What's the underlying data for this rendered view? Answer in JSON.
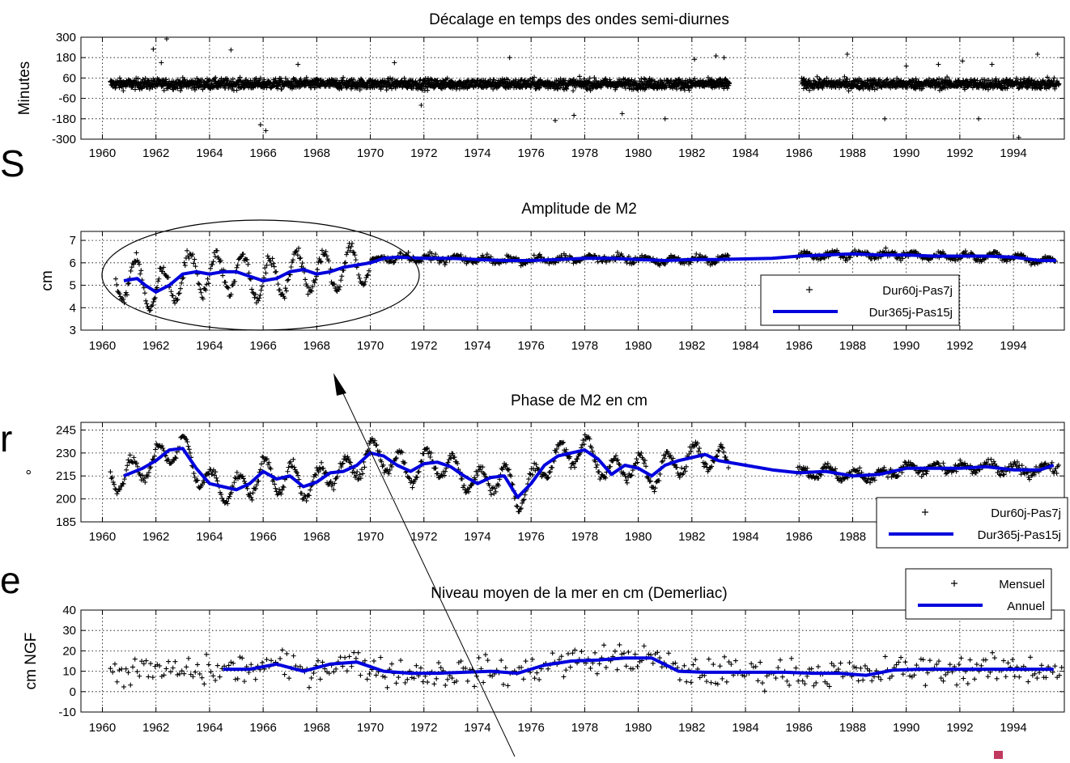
{
  "colors": {
    "series_mark": "#000000",
    "series_line": "#0000dd",
    "corner_mark": "#c0395e"
  },
  "side_glyphs": [
    "S",
    "r",
    "e"
  ],
  "chart_data": [
    {
      "type": "scatter",
      "title": "Décalage en temps des ondes semi-diurnes",
      "xlabel": "",
      "ylabel": "Minutes",
      "xlim": [
        1959.2,
        1995.9
      ],
      "ylim": [
        -300,
        300
      ],
      "x_ticks": [
        "1960",
        "1962",
        "1964",
        "1966",
        "1968",
        "1970",
        "1972",
        "1974",
        "1976",
        "1978",
        "1980",
        "1982",
        "1984",
        "1986",
        "1988",
        "1990",
        "1992",
        "1994"
      ],
      "y_ticks": [
        "300",
        "180",
        "60",
        "-60",
        "-180",
        "-300"
      ],
      "grid": true,
      "series": [
        {
          "kind": "scatter",
          "values_x_range": [
            1960.3,
            1983.4
          ],
          "mean": 25,
          "spread": 30
        },
        {
          "kind": "scatter",
          "values_x_range": [
            1986.1,
            1995.7
          ],
          "mean": 25,
          "spread": 30
        }
      ],
      "outliers": [
        {
          "x": 1961.9,
          "y": 230
        },
        {
          "x": 1962.2,
          "y": 150
        },
        {
          "x": 1962.4,
          "y": 290
        },
        {
          "x": 1964.8,
          "y": 225
        },
        {
          "x": 1965.9,
          "y": -215
        },
        {
          "x": 1966.1,
          "y": -250
        },
        {
          "x": 1967.3,
          "y": 140
        },
        {
          "x": 1970.9,
          "y": 150
        },
        {
          "x": 1971.9,
          "y": -100
        },
        {
          "x": 1975.2,
          "y": 180
        },
        {
          "x": 1976.9,
          "y": -190
        },
        {
          "x": 1977.6,
          "y": -160
        },
        {
          "x": 1979.4,
          "y": -150
        },
        {
          "x": 1981.0,
          "y": -180
        },
        {
          "x": 1982.1,
          "y": 170
        },
        {
          "x": 1982.9,
          "y": 190
        },
        {
          "x": 1983.2,
          "y": 180
        },
        {
          "x": 1987.8,
          "y": 200
        },
        {
          "x": 1989.2,
          "y": -180
        },
        {
          "x": 1990.0,
          "y": 130
        },
        {
          "x": 1991.2,
          "y": 140
        },
        {
          "x": 1992.1,
          "y": 160
        },
        {
          "x": 1992.7,
          "y": -180
        },
        {
          "x": 1993.2,
          "y": 140
        },
        {
          "x": 1994.2,
          "y": -290
        },
        {
          "x": 1994.9,
          "y": 200
        }
      ]
    },
    {
      "type": "line",
      "title": "Amplitude de M2",
      "xlabel": "",
      "ylabel": "cm",
      "xlim": [
        1959.2,
        1995.9
      ],
      "ylim": [
        3,
        7.4
      ],
      "x_ticks": [
        "1960",
        "1962",
        "1964",
        "1966",
        "1968",
        "1970",
        "1972",
        "1974",
        "1976",
        "1978",
        "1980",
        "1982",
        "1984",
        "1986",
        "1988",
        "1990",
        "1992",
        "1994"
      ],
      "y_ticks": [
        "7",
        "6",
        "5",
        "4",
        "3"
      ],
      "grid": true,
      "legend_position": "bottom-right",
      "series": [
        {
          "name": "Dur60j-Pas7j",
          "kind": "scatter",
          "values_x_range": [
            1960.5,
            1995.6
          ]
        },
        {
          "name": "Dur365j-Pas15j",
          "kind": "line",
          "x": [
            1960.8,
            1961.3,
            1961.6,
            1962.0,
            1962.5,
            1963.0,
            1963.5,
            1964.0,
            1964.5,
            1965.0,
            1965.5,
            1966.0,
            1966.5,
            1967.0,
            1967.5,
            1968.0,
            1968.5,
            1969.0,
            1969.5,
            1970.0,
            1970.5,
            1971.0,
            1972.0,
            1973.0,
            1974.0,
            1975.0,
            1976.0,
            1977.0,
            1978.0,
            1979.0,
            1980.0,
            1981.0,
            1982.0,
            1983.0,
            1985.0,
            1986.0,
            1987.0,
            1988.0,
            1989.0,
            1990.0,
            1991.0,
            1992.0,
            1993.0,
            1994.0,
            1995.0,
            1995.6
          ],
          "y": [
            5.2,
            5.3,
            5.0,
            4.7,
            5.0,
            5.5,
            5.6,
            5.5,
            5.6,
            5.6,
            5.4,
            5.2,
            5.3,
            5.6,
            5.7,
            5.5,
            5.6,
            5.8,
            5.9,
            6.0,
            6.2,
            6.25,
            6.2,
            6.2,
            6.15,
            6.1,
            6.1,
            6.15,
            6.2,
            6.2,
            6.15,
            6.1,
            6.15,
            6.15,
            6.2,
            6.3,
            6.35,
            6.4,
            6.35,
            6.35,
            6.3,
            6.3,
            6.3,
            6.25,
            6.1,
            6.1
          ]
        }
      ],
      "annotation": "ellipse"
    },
    {
      "type": "line",
      "title": "Phase de M2 en cm",
      "xlabel": "",
      "ylabel": "°",
      "xlim": [
        1959.2,
        1995.9
      ],
      "ylim": [
        185,
        250
      ],
      "x_ticks": [
        "1960",
        "1962",
        "1964",
        "1966",
        "1968",
        "1970",
        "1972",
        "1974",
        "1976",
        "1978",
        "1980",
        "1982",
        "1984",
        "1986",
        "1988"
      ],
      "y_ticks": [
        "245",
        "230",
        "215",
        "200",
        "185"
      ],
      "grid": true,
      "legend_position": "bottom-right",
      "series": [
        {
          "name": "Dur60j-Pas7j",
          "kind": "scatter",
          "values_x_range": [
            1960.3,
            1995.7
          ]
        },
        {
          "name": "Dur365j-Pas15j",
          "kind": "line",
          "x": [
            1960.8,
            1961.5,
            1962.0,
            1962.5,
            1963.0,
            1963.5,
            1964.0,
            1964.5,
            1965.0,
            1965.5,
            1966.0,
            1966.5,
            1967.0,
            1967.5,
            1968.0,
            1968.5,
            1969.0,
            1969.5,
            1970.0,
            1970.5,
            1971.0,
            1971.5,
            1972.0,
            1972.5,
            1973.0,
            1973.5,
            1974.0,
            1974.5,
            1975.0,
            1975.5,
            1976.0,
            1976.5,
            1977.0,
            1977.5,
            1978.0,
            1978.5,
            1979.0,
            1979.5,
            1980.0,
            1980.5,
            1981.0,
            1981.5,
            1982.0,
            1982.5,
            1983.0,
            1984.0,
            1985.0,
            1986.0,
            1987.0,
            1988.0,
            1989.0,
            1990.0,
            1991.0,
            1992.0,
            1993.0,
            1994.0,
            1995.0,
            1995.5
          ],
          "y": [
            215,
            220,
            225,
            232,
            233,
            220,
            210,
            208,
            206,
            210,
            218,
            213,
            215,
            208,
            211,
            217,
            218,
            222,
            230,
            228,
            222,
            218,
            223,
            224,
            221,
            215,
            210,
            214,
            215,
            201,
            210,
            222,
            228,
            230,
            232,
            226,
            216,
            222,
            220,
            215,
            222,
            225,
            227,
            229,
            225,
            222,
            219,
            217,
            218,
            215,
            216,
            220,
            220,
            220,
            221,
            219,
            219,
            222
          ]
        }
      ]
    },
    {
      "type": "line",
      "title": "Niveau moyen de la mer en cm (Demerliac)",
      "xlabel": "",
      "ylabel": "cm NGF",
      "xlim": [
        1959.2,
        1995.9
      ],
      "ylim": [
        -10,
        40
      ],
      "x_ticks": [
        "1960",
        "1962",
        "1964",
        "1966",
        "1968",
        "1970",
        "1972",
        "1974",
        "1976",
        "1978",
        "1980",
        "1982",
        "1984",
        "1986",
        "1988",
        "1990",
        "1992",
        "1994"
      ],
      "y_ticks": [
        "40",
        "30",
        "20",
        "10",
        "0",
        "-10"
      ],
      "grid": true,
      "legend_position": "top-right",
      "series": [
        {
          "name": "Mensuel",
          "kind": "scatter",
          "values_x_range": [
            1960.3,
            1995.8
          ]
        },
        {
          "name": "Annuel",
          "kind": "line",
          "x": [
            1964.5,
            1965.5,
            1966.5,
            1967.5,
            1968.5,
            1969.5,
            1970.5,
            1971.5,
            1972.5,
            1973.5,
            1974.5,
            1975.5,
            1976.5,
            1977.5,
            1978.5,
            1979.5,
            1980.5,
            1981.5,
            1982.5,
            1983.5,
            1984.5,
            1985.5,
            1986.5,
            1987.5,
            1988.5,
            1989.5,
            1990.5,
            1991.5,
            1992.5,
            1993.5,
            1994.5,
            1995.5
          ],
          "y": [
            11,
            11,
            13.5,
            10,
            13.5,
            14.5,
            10,
            9,
            9,
            9.5,
            10,
            9,
            13,
            15,
            15.5,
            16.5,
            16.5,
            10,
            9.5,
            9.5,
            9.5,
            9.5,
            9,
            9,
            8,
            10.5,
            11,
            11,
            11,
            11,
            11,
            11
          ]
        }
      ]
    }
  ]
}
